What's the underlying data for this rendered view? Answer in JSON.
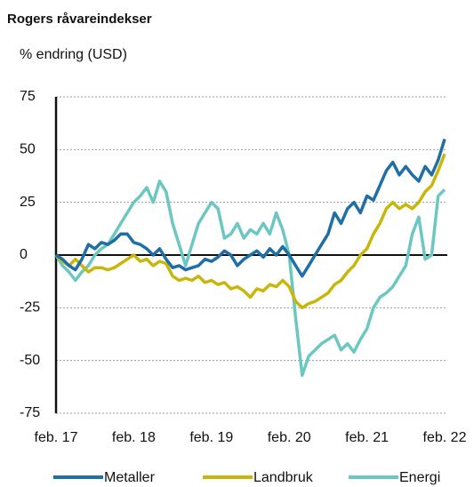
{
  "chart_data": {
    "type": "line",
    "title": "Rogers råvareindekser",
    "subtitle": "% endring (USD)",
    "categories": [
      "feb. 17",
      null,
      null,
      null,
      null,
      null,
      null,
      null,
      null,
      null,
      null,
      null,
      "feb. 18",
      null,
      null,
      null,
      null,
      null,
      null,
      null,
      null,
      null,
      null,
      null,
      "feb. 19",
      null,
      null,
      null,
      null,
      null,
      null,
      null,
      null,
      null,
      null,
      null,
      "feb. 20",
      null,
      null,
      null,
      null,
      null,
      null,
      null,
      null,
      null,
      null,
      null,
      "feb. 21",
      null,
      null,
      null,
      null,
      null,
      null,
      null,
      null,
      null,
      null,
      null,
      "feb. 22"
    ],
    "series": [
      {
        "name": "Metaller",
        "color": "#1f6fa6",
        "values": [
          0,
          -2,
          -5,
          -7,
          -2,
          5,
          3,
          6,
          5,
          7,
          10,
          10,
          6,
          5,
          3,
          0,
          3,
          -2,
          -6,
          -5,
          -7,
          -6,
          -5,
          -2,
          -3,
          -1,
          2,
          0,
          -5,
          -2,
          0,
          2,
          -1,
          3,
          0,
          4,
          0,
          -5,
          -10,
          -5,
          0,
          5,
          10,
          20,
          15,
          22,
          25,
          20,
          28,
          26,
          33,
          40,
          44,
          38,
          42,
          38,
          35,
          42,
          38,
          45,
          55
        ]
      },
      {
        "name": "Landbruk",
        "color": "#c9b60a",
        "values": [
          0,
          -3,
          -5,
          -2,
          -5,
          -8,
          -6,
          -6,
          -7,
          -6,
          -4,
          -2,
          0,
          -3,
          -2,
          -5,
          -3,
          -4,
          -10,
          -12,
          -11,
          -12,
          -10,
          -13,
          -12,
          -14,
          -13,
          -16,
          -15,
          -17,
          -20,
          -16,
          -17,
          -14,
          -15,
          -12,
          -15,
          -22,
          -25,
          -23,
          -22,
          -20,
          -18,
          -14,
          -12,
          -8,
          -5,
          0,
          3,
          10,
          15,
          22,
          25,
          22,
          24,
          22,
          25,
          30,
          33,
          40,
          48
        ]
      },
      {
        "name": "Energi",
        "color": "#6cc7c3",
        "values": [
          0,
          -5,
          -8,
          -12,
          -8,
          -5,
          0,
          3,
          5,
          10,
          15,
          20,
          25,
          28,
          32,
          25,
          35,
          30,
          15,
          5,
          -5,
          5,
          15,
          20,
          25,
          22,
          8,
          10,
          15,
          8,
          12,
          10,
          15,
          10,
          20,
          12,
          0,
          -30,
          -57,
          -48,
          -45,
          -42,
          -40,
          -38,
          -45,
          -42,
          -46,
          -40,
          -35,
          -25,
          -20,
          -18,
          -15,
          -10,
          -5,
          10,
          18,
          -2,
          0,
          28,
          31
        ]
      }
    ],
    "ylim": [
      -75,
      75
    ],
    "yticks": [
      -75,
      -50,
      -25,
      0,
      25,
      50,
      75
    ],
    "grid": true
  }
}
